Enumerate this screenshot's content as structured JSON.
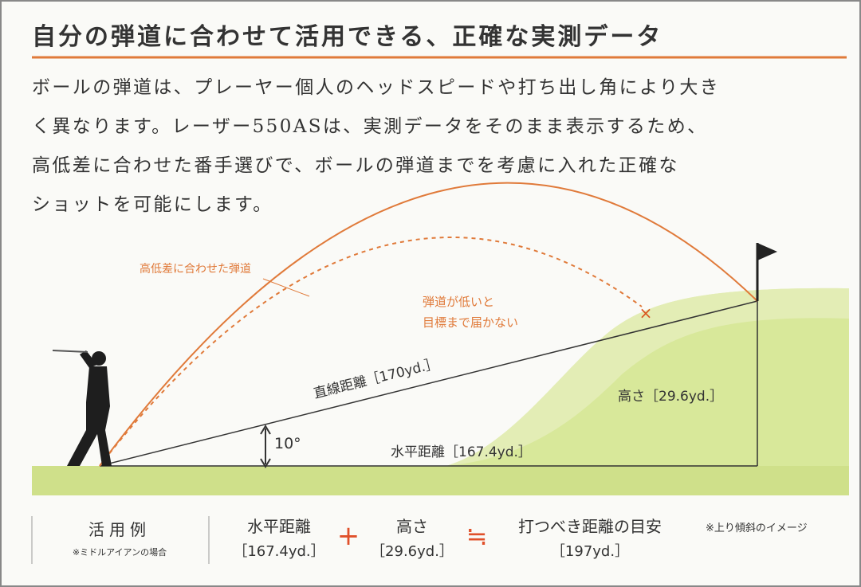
{
  "header": {
    "title": "自分の弾道に合わせて活用できる、正確な実測データ"
  },
  "body": {
    "lines": [
      "ボールの弾道は、プレーヤー個人のヘッドスピードや打ち出し角により大き",
      "く異なります。レーザー550ASは、実測データをそのまま表示するため、",
      "高低差に合わせた番手選びで、ボールの弾道までを考慮に入れた正確な",
      "ショットを可能にします。"
    ]
  },
  "diagram": {
    "arc_label": "高低差に合わせた弾道",
    "low_label": [
      "弾道が低いと",
      "目標まで届かない"
    ],
    "miss_mark": "×",
    "line_label": "直線距離［170yd.］",
    "height_label": "高さ［29.6yd.］",
    "horizontal_label": "水平距離［167.4yd.］",
    "angle_label": "10°"
  },
  "footer": {
    "example": "活用例",
    "example_note": "※ミドルアイアンの場合",
    "horizontal": "水平距離",
    "horizontal_value": "［167.4yd.］",
    "plus": "+",
    "height": "高さ",
    "height_value": "［29.6yd.］",
    "approx": "≒",
    "target": "打つべき距離の目安",
    "target_value": "［197yd.］",
    "note": "※上り傾斜のイメージ"
  }
}
